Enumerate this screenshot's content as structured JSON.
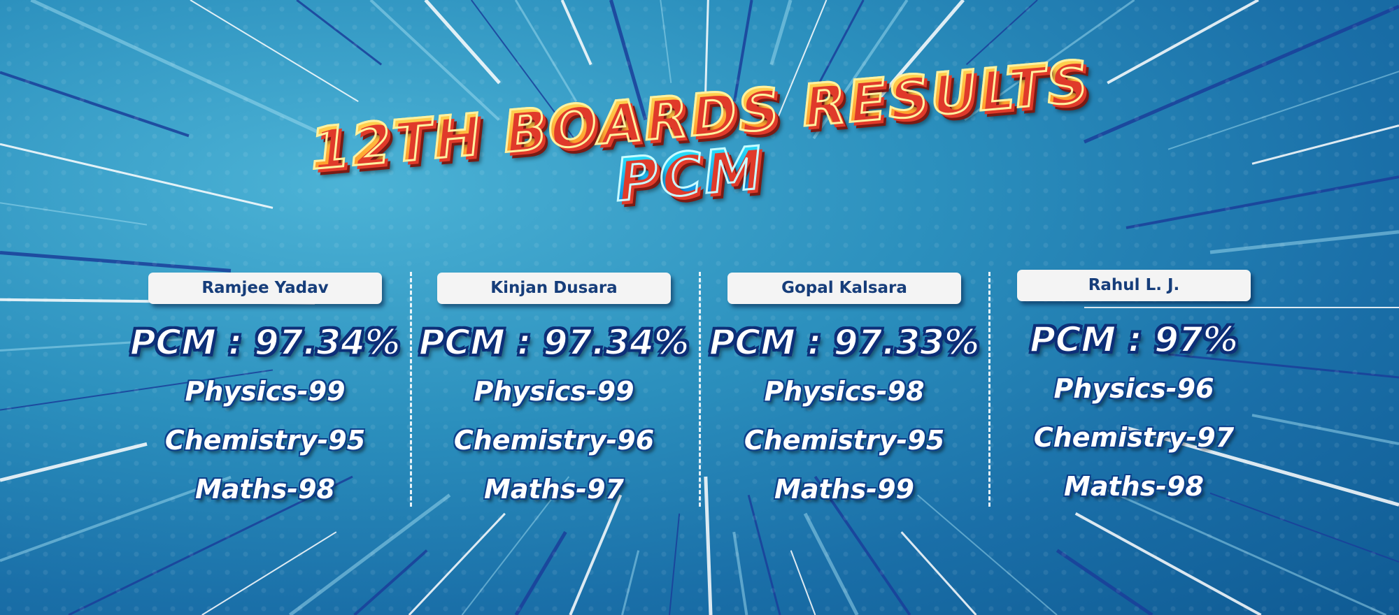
{
  "title": {
    "line1": "12TH BOARDS RESULTS",
    "line2": "PCM"
  },
  "colors": {
    "background": "#2b8fbd",
    "title_fill": "#ffc23a",
    "subtitle_fill": "#2ef2ff",
    "title_shadow": "#e03a2a",
    "text_outline": "#0d2f78"
  },
  "students": [
    {
      "name": "Ramjee Yadav",
      "pcm": "PCM : 97.34%",
      "physics": "Physics-99",
      "chemistry": "Chemistry-95",
      "maths": "Maths-98"
    },
    {
      "name": "Kinjan Dusara",
      "pcm": "PCM : 97.34%",
      "physics": "Physics-99",
      "chemistry": "Chemistry-96",
      "maths": "Maths-97"
    },
    {
      "name": "Gopal Kalsara",
      "pcm": "PCM : 97.33%",
      "physics": "Physics-98",
      "chemistry": "Chemistry-95",
      "maths": "Maths-99"
    },
    {
      "name": "Rahul L. J.",
      "pcm": "PCM : 97%",
      "physics": "Physics-96",
      "chemistry": "Chemistry-97",
      "maths": "Maths-98"
    }
  ]
}
